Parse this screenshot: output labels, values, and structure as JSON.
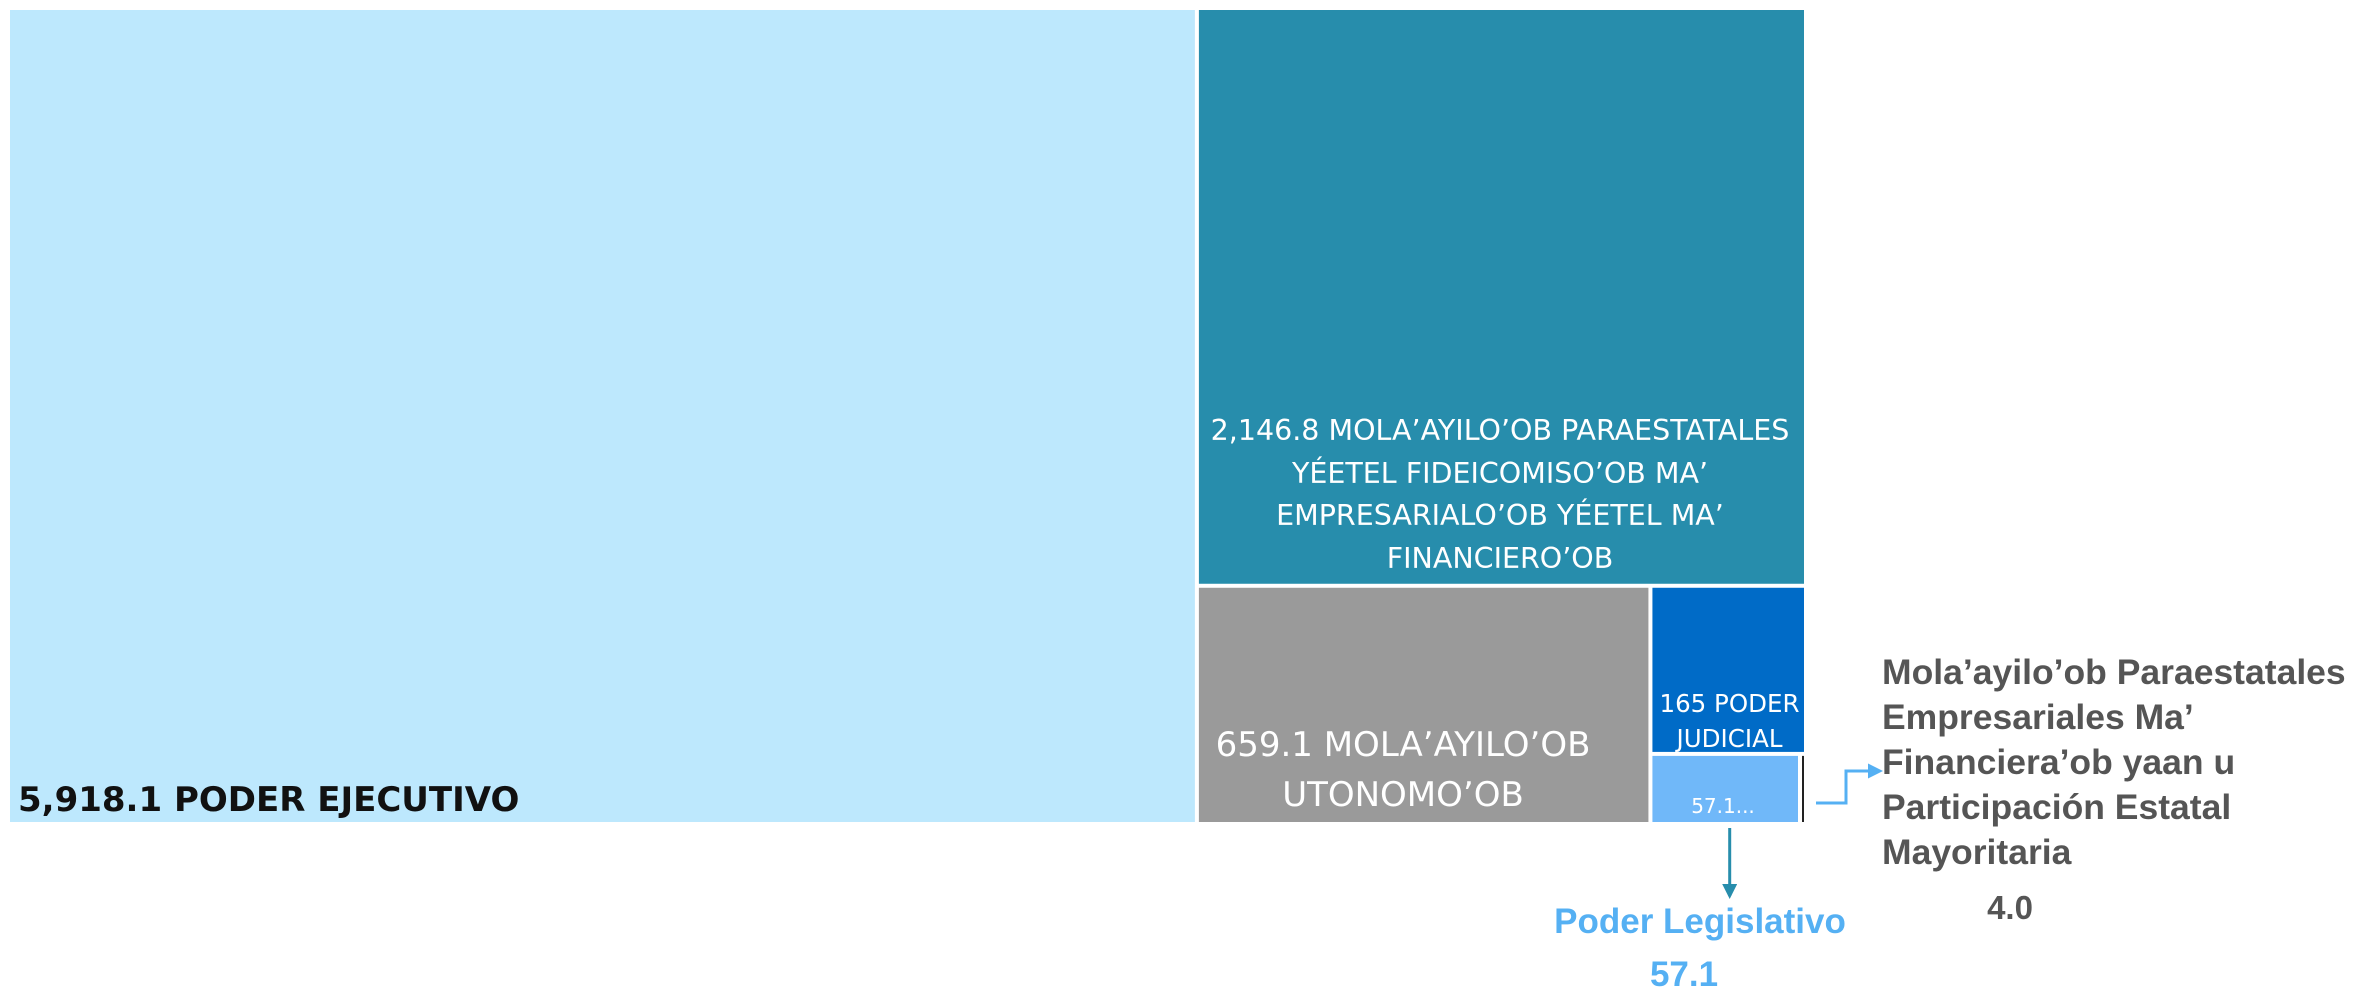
{
  "chart_data": {
    "type": "treemap",
    "title": "",
    "items": [
      {
        "id": "ejecutivo",
        "value": 5918.1,
        "label": "5,918.1 PODER EJECUTIVO",
        "color": "#BDE8FD"
      },
      {
        "id": "paraestatales",
        "value": 2146.8,
        "label": "2,146.8 MOLA’AYILO’OB PARAESTATALES YÉETEL FIDEICOMISO’OB MA’ EMPRESARIALO’OB YÉETEL MA’ FINANCIERO’OB",
        "color": "#278DAC"
      },
      {
        "id": "autonomos",
        "value": 659.1,
        "label": "659.1 MOLA’AYILO’OB UTONOMO’OB",
        "color": "#9A9A9A"
      },
      {
        "id": "judicial",
        "value": 165,
        "label": "165 PODER JUDICIAL",
        "color": "#006BC7"
      },
      {
        "id": "legislativo",
        "value": 57.1,
        "label": "57.1...",
        "color": "#70B8F9"
      },
      {
        "id": "paraestatales_empresariales",
        "value": 4.0,
        "label": "",
        "color": "#222222"
      }
    ],
    "callouts": {
      "legislativo": {
        "name": "Poder Legislativo",
        "value": "57.1",
        "color": "#55B0F3",
        "arrow_color": "#278DAC"
      },
      "paraestatales_empresariales": {
        "name": "Mola’ayilo’ob Paraestatales Empresariales Ma’ Financiera’ob yaan u Participación Estatal Mayoritaria",
        "value": "4.0",
        "color": "#555555",
        "arrow_color": "#55B0F3"
      }
    }
  }
}
